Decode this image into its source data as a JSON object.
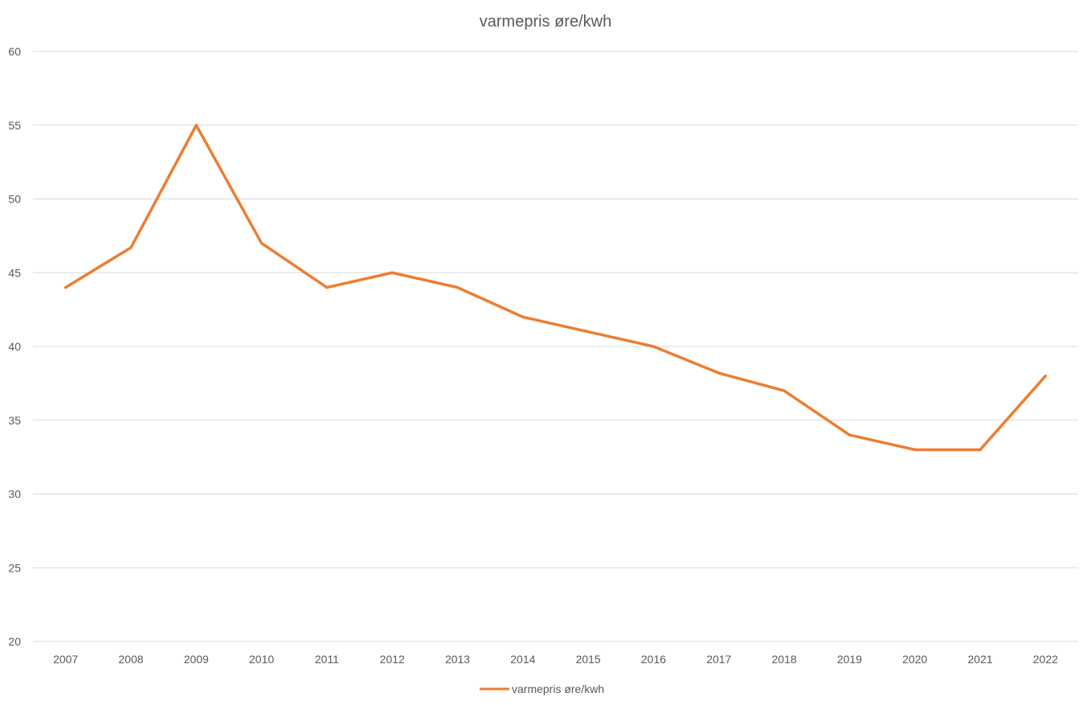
{
  "chart_data": {
    "type": "line",
    "title": "varmepris øre/kwh",
    "xlabel": "",
    "ylabel": "",
    "categories": [
      "2007",
      "2008",
      "2009",
      "2010",
      "2011",
      "2012",
      "2013",
      "2014",
      "2015",
      "2016",
      "2017",
      "2018",
      "2019",
      "2020",
      "2021",
      "2022"
    ],
    "series": [
      {
        "name": "varmepris øre/kwh",
        "color": "#ED7D31",
        "values": [
          44,
          46.7,
          55,
          47,
          44,
          45,
          44,
          42,
          41,
          40,
          38.2,
          37,
          34,
          33,
          33,
          38
        ]
      }
    ],
    "ylim": [
      20,
      60
    ],
    "yticks": [
      "20",
      "25",
      "30",
      "35",
      "40",
      "45",
      "50",
      "55",
      "60"
    ],
    "grid": true,
    "legend_position": "bottom"
  }
}
